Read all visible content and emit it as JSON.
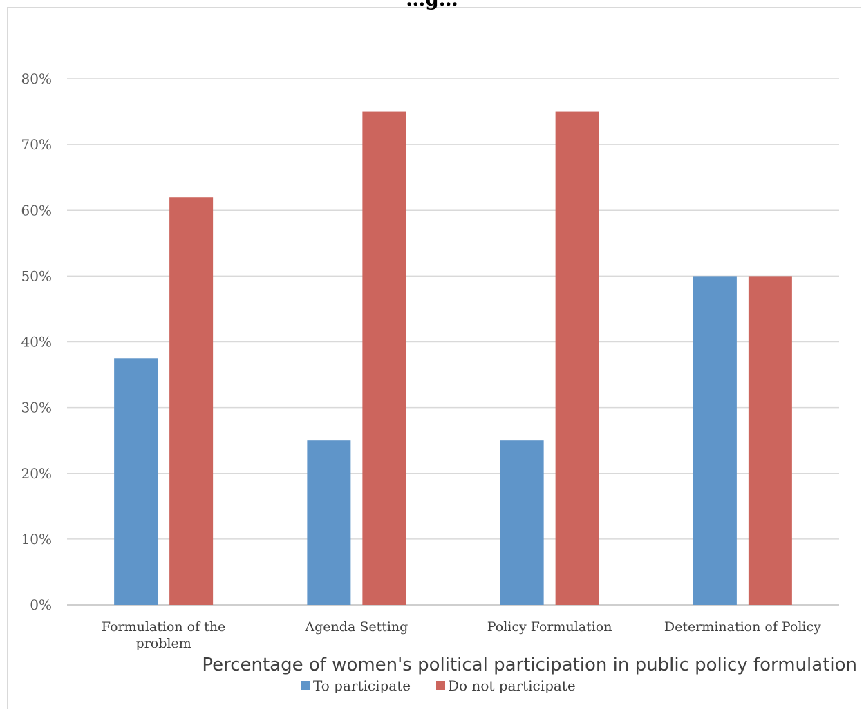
{
  "chart_data": {
    "type": "bar",
    "title": "…g…",
    "subtitle": "Percentage of women's political participation in public policy formulation",
    "categories": [
      [
        "Formulation of the",
        "problem"
      ],
      [
        "Agenda Setting"
      ],
      [
        "Policy Formulation"
      ],
      [
        "Determination of Policy"
      ]
    ],
    "series": [
      {
        "name": "To participate",
        "color": "#5f95c9",
        "values": [
          37.5,
          25,
          25,
          50
        ]
      },
      {
        "name": "Do not participate",
        "color": "#cc655d",
        "values": [
          62,
          75,
          75,
          50
        ]
      }
    ],
    "ylim": [
      0,
      80
    ],
    "yticks": [
      0,
      10,
      20,
      30,
      40,
      50,
      60,
      70,
      80
    ],
    "ytick_labels": [
      "0%",
      "10%",
      "20%",
      "30%",
      "40%",
      "50%",
      "60%",
      "70%",
      "80%"
    ],
    "grid": true,
    "gridline_color": "#d9d9d9",
    "legend_position": "bottom"
  }
}
